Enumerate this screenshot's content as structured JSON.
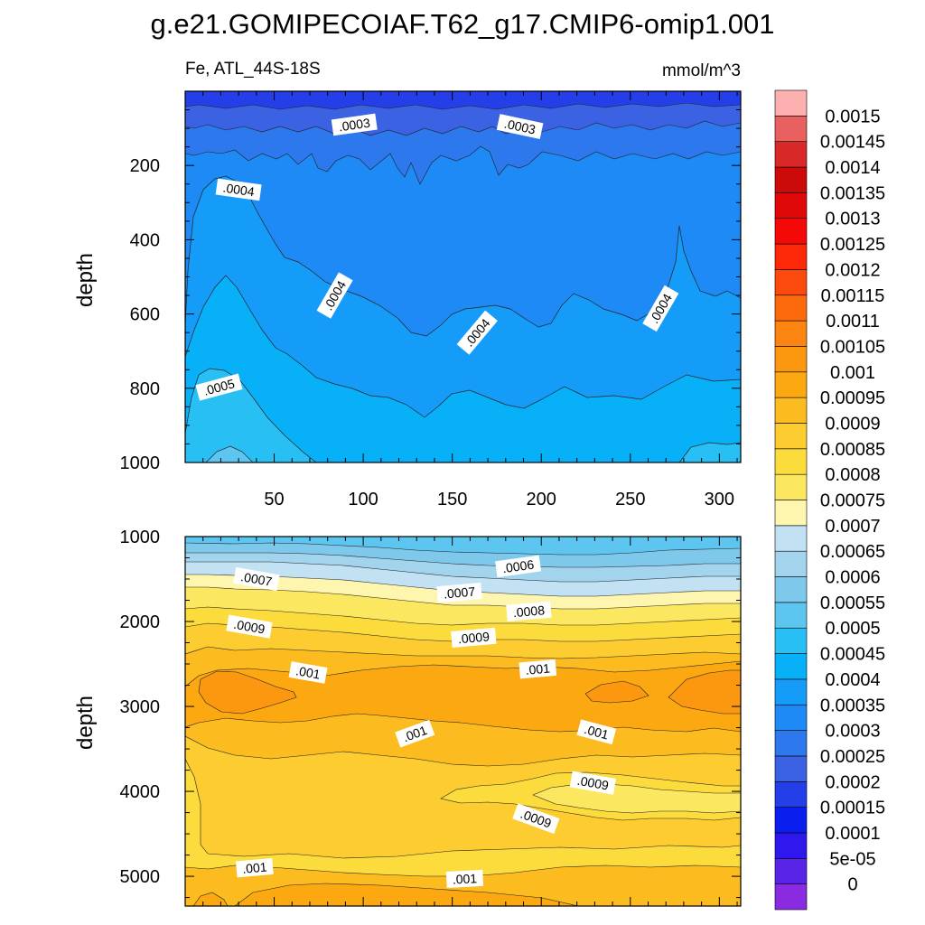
{
  "title": "g.e21.GOMIPECOIAF.T62_g17.CMIP6-omip1.001",
  "subtitle_left": "Fe, ATL_44S-18S",
  "subtitle_right": "mmol/m^3",
  "colors": {
    "levels": [
      "#8a2be2",
      "#5a24e8",
      "#2f18ee",
      "#0a1ef0",
      "#243ee8",
      "#3a62e2",
      "#2e78ee",
      "#1e8af5",
      "#149cf8",
      "#08b0f8",
      "#28c0f4",
      "#5cc6f0",
      "#7ec8ec",
      "#a2d4ee",
      "#c2e2f4",
      "#fef6ae",
      "#fce860",
      "#fcdc3c",
      "#fccc30",
      "#fcbc20",
      "#fca810",
      "#fc9810",
      "#fc8410",
      "#fc6a0c",
      "#fc4a0c",
      "#fc2808",
      "#f40808",
      "#e00808",
      "#cc0a0a",
      "#d82828",
      "#e86060",
      "#fcb0b0"
    ]
  },
  "chart_data": [
    {
      "type": "heatmap",
      "panel": "upper",
      "ylabel": "depth",
      "xlim": [
        0,
        312
      ],
      "ylim": [
        1000,
        0
      ],
      "xticks": [
        50,
        100,
        150,
        200,
        250,
        300
      ],
      "yticks": [
        200,
        400,
        600,
        800,
        1000
      ],
      "contour_labels": [
        {
          "text": ".0003",
          "x": 95,
          "y": 90
        },
        {
          "text": ".0003",
          "x": 188,
          "y": 95
        },
        {
          "text": ".0004",
          "x": 30,
          "y": 265
        },
        {
          "text": ".0004",
          "x": 84,
          "y": 550
        },
        {
          "text": ".0004",
          "x": 164,
          "y": 650
        },
        {
          "text": ".0004",
          "x": 267,
          "y": 585
        },
        {
          "text": ".0005",
          "x": 19,
          "y": 797
        }
      ]
    },
    {
      "type": "heatmap",
      "panel": "lower",
      "ylabel": "depth",
      "xlim": [
        0,
        312
      ],
      "ylim": [
        5350,
        1000
      ],
      "yticks": [
        1000,
        2000,
        3000,
        4000,
        5000
      ],
      "contour_labels": [
        {
          "text": ".0007",
          "x": 40,
          "y": 1500
        },
        {
          "text": ".0006",
          "x": 187,
          "y": 1350
        },
        {
          "text": ".0007",
          "x": 154,
          "y": 1660
        },
        {
          "text": ".0008",
          "x": 193,
          "y": 1880
        },
        {
          "text": ".0009",
          "x": 36,
          "y": 2060
        },
        {
          "text": ".0009",
          "x": 162,
          "y": 2190
        },
        {
          "text": ".001",
          "x": 69,
          "y": 2600
        },
        {
          "text": ".001",
          "x": 198,
          "y": 2560
        },
        {
          "text": ".001",
          "x": 129,
          "y": 3320
        },
        {
          "text": ".001",
          "x": 231,
          "y": 3300
        },
        {
          "text": ".0009",
          "x": 229,
          "y": 3900
        },
        {
          "text": ".0009",
          "x": 197,
          "y": 4320
        },
        {
          "text": ".001",
          "x": 39,
          "y": 4900
        },
        {
          "text": ".001",
          "x": 157,
          "y": 5030
        }
      ]
    }
  ],
  "colorbar": {
    "labels": [
      "0.0015",
      "0.00145",
      "0.0014",
      "0.00135",
      "0.0013",
      "0.00125",
      "0.0012",
      "0.00115",
      "0.0011",
      "0.00105",
      "0.001",
      "0.00095",
      "0.0009",
      "0.00085",
      "0.0008",
      "0.00075",
      "0.0007",
      "0.00065",
      "0.0006",
      "0.00055",
      "0.0005",
      "0.00045",
      "0.0004",
      "0.00035",
      "0.0003",
      "0.00025",
      "0.0002",
      "0.00015",
      "0.0001",
      "5e-05",
      "0"
    ]
  }
}
